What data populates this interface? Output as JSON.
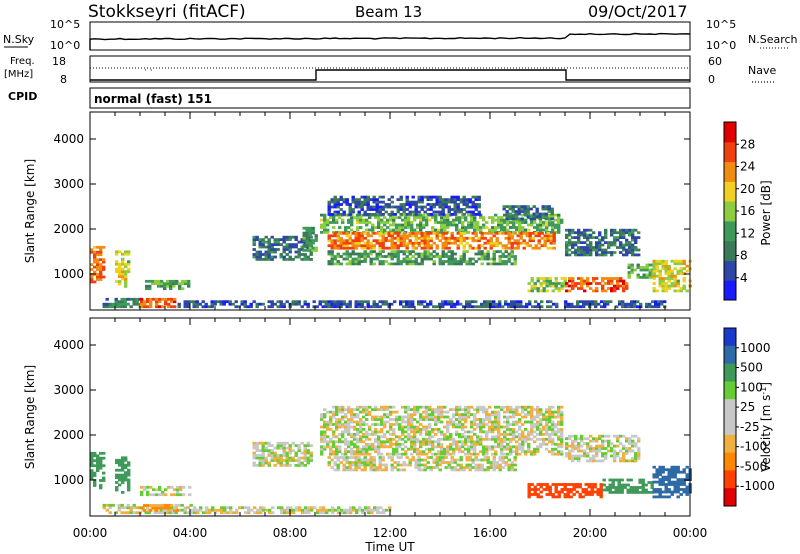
{
  "header": {
    "station": "Stokkseyri (fitACF)",
    "beam": "Beam 13",
    "date": "09/Oct/2017"
  },
  "strips": {
    "nsky_label": "N.Sky",
    "nsearch_label": "N.Search",
    "noise_ticks_left": [
      "10^5",
      "10^0"
    ],
    "noise_ticks_right": [
      "10^5",
      "10^0"
    ],
    "freq_label_line1": "Freq.",
    "freq_label_line2": "[MHz]",
    "freq_ticks": [
      "18",
      "8"
    ],
    "nave_label": "Nave",
    "nave_ticks": [
      "60",
      "0"
    ],
    "cpid_label": "CPID",
    "cpid_value": "normal (fast) 151"
  },
  "colors": {
    "power_scale": [
      "#1a1aff",
      "#2e46a6",
      "#3a7a5a",
      "#3f9a5a",
      "#8ccc3e",
      "#f0d020",
      "#f08c10",
      "#f04010",
      "#e00000"
    ],
    "velocity_scale": [
      "#e00000",
      "#ff4000",
      "#ff8800",
      "#f0b040",
      "#c8c8c8",
      "#c8c8c8",
      "#66cc33",
      "#3f9a5a",
      "#2e6aa6",
      "#1a3acc"
    ],
    "ground_scatter": "#c8c8c8"
  },
  "chart_data": [
    {
      "type": "heatmap",
      "name": "power",
      "xlabel": "",
      "ylabel": "Slant Range [km]",
      "ylim": [
        200,
        4600
      ],
      "yticks": [
        "1000",
        "2000",
        "3000",
        "4000"
      ],
      "colorbar_label": "Power [dB]",
      "colorbar_ticks": [
        "4",
        "8",
        "12",
        "16",
        "20",
        "24",
        "28"
      ],
      "colorbar_range": [
        0,
        32
      ],
      "regions": [
        {
          "t": [
            0.0,
            0.5
          ],
          "r": [
            800,
            1600
          ],
          "v": 24
        },
        {
          "t": [
            1.0,
            1.5
          ],
          "r": [
            700,
            1500
          ],
          "v": 18
        },
        {
          "t": [
            0.5,
            2.0
          ],
          "r": [
            250,
            450
          ],
          "v": 10
        },
        {
          "t": [
            2.0,
            3.5
          ],
          "r": [
            250,
            450
          ],
          "v": 26
        },
        {
          "t": [
            2.2,
            4.0
          ],
          "r": [
            650,
            850
          ],
          "v": 12
        },
        {
          "t": [
            3.5,
            12.0
          ],
          "r": [
            250,
            400
          ],
          "v": 6
        },
        {
          "t": [
            6.5,
            8.8
          ],
          "r": [
            1300,
            1800
          ],
          "v": 8
        },
        {
          "t": [
            8.5,
            9.0
          ],
          "r": [
            1500,
            2000
          ],
          "v": 12
        },
        {
          "t": [
            9.2,
            18.8
          ],
          "r": [
            1900,
            2300
          ],
          "v": 14
        },
        {
          "t": [
            9.5,
            18.5
          ],
          "r": [
            1550,
            1900
          ],
          "v": 24
        },
        {
          "t": [
            9.5,
            17.0
          ],
          "r": [
            1200,
            1500
          ],
          "v": 12
        },
        {
          "t": [
            9.5,
            15.5
          ],
          "r": [
            2300,
            2700
          ],
          "v": 6
        },
        {
          "t": [
            16.5,
            18.5
          ],
          "r": [
            2200,
            2500
          ],
          "v": 8
        },
        {
          "t": [
            19.0,
            22.0
          ],
          "r": [
            1400,
            2000
          ],
          "v": 8
        },
        {
          "t": [
            17.5,
            19.0
          ],
          "r": [
            600,
            900
          ],
          "v": 16
        },
        {
          "t": [
            19.0,
            21.5
          ],
          "r": [
            600,
            900
          ],
          "v": 26
        },
        {
          "t": [
            21.5,
            22.5
          ],
          "r": [
            900,
            1200
          ],
          "v": 14
        },
        {
          "t": [
            22.5,
            24.0
          ],
          "r": [
            600,
            1300
          ],
          "v": 18
        },
        {
          "t": [
            12.0,
            23.0
          ],
          "r": [
            250,
            400
          ],
          "v": 6
        }
      ]
    },
    {
      "type": "heatmap",
      "name": "velocity",
      "xlabel": "Time UT",
      "xlim": [
        "00:00",
        "24:00"
      ],
      "xticks": [
        "00:00",
        "04:00",
        "08:00",
        "12:00",
        "16:00",
        "20:00",
        "00:00"
      ],
      "ylabel": "Slant Range [km]",
      "ylim": [
        200,
        4600
      ],
      "yticks": [
        "1000",
        "2000",
        "3000",
        "4000"
      ],
      "colorbar_label": "Velocity [m s-1]",
      "colorbar_ticks": [
        "1000",
        "500",
        "100",
        "25",
        "-25",
        "-100",
        "-500",
        "-1000"
      ],
      "regions": [
        {
          "t": [
            0.0,
            0.5
          ],
          "r": [
            800,
            1600
          ],
          "v": 200
        },
        {
          "t": [
            1.0,
            1.5
          ],
          "r": [
            700,
            1500
          ],
          "v": 150
        },
        {
          "t": [
            2.0,
            4.0
          ],
          "r": [
            650,
            850
          ],
          "v": 0
        },
        {
          "t": [
            0.5,
            4.0
          ],
          "r": [
            250,
            450
          ],
          "v": 0
        },
        {
          "t": [
            2.0,
            3.5
          ],
          "r": [
            300,
            420
          ],
          "v": -80
        },
        {
          "t": [
            4.0,
            12.0
          ],
          "r": [
            250,
            400
          ],
          "v": 0
        },
        {
          "t": [
            6.5,
            8.8
          ],
          "r": [
            1300,
            1800
          ],
          "v": 0
        },
        {
          "t": [
            9.2,
            18.8
          ],
          "r": [
            1550,
            2600
          ],
          "v": 0
        },
        {
          "t": [
            9.5,
            17.0
          ],
          "r": [
            1200,
            1500
          ],
          "v": 0
        },
        {
          "t": [
            19.0,
            22.0
          ],
          "r": [
            1400,
            2000
          ],
          "v": 0
        },
        {
          "t": [
            17.5,
            20.5
          ],
          "r": [
            600,
            900
          ],
          "v": -300
        },
        {
          "t": [
            20.5,
            22.5
          ],
          "r": [
            700,
            1000
          ],
          "v": 200
        },
        {
          "t": [
            22.5,
            24.0
          ],
          "r": [
            600,
            1300
          ],
          "v": 400
        }
      ]
    }
  ]
}
